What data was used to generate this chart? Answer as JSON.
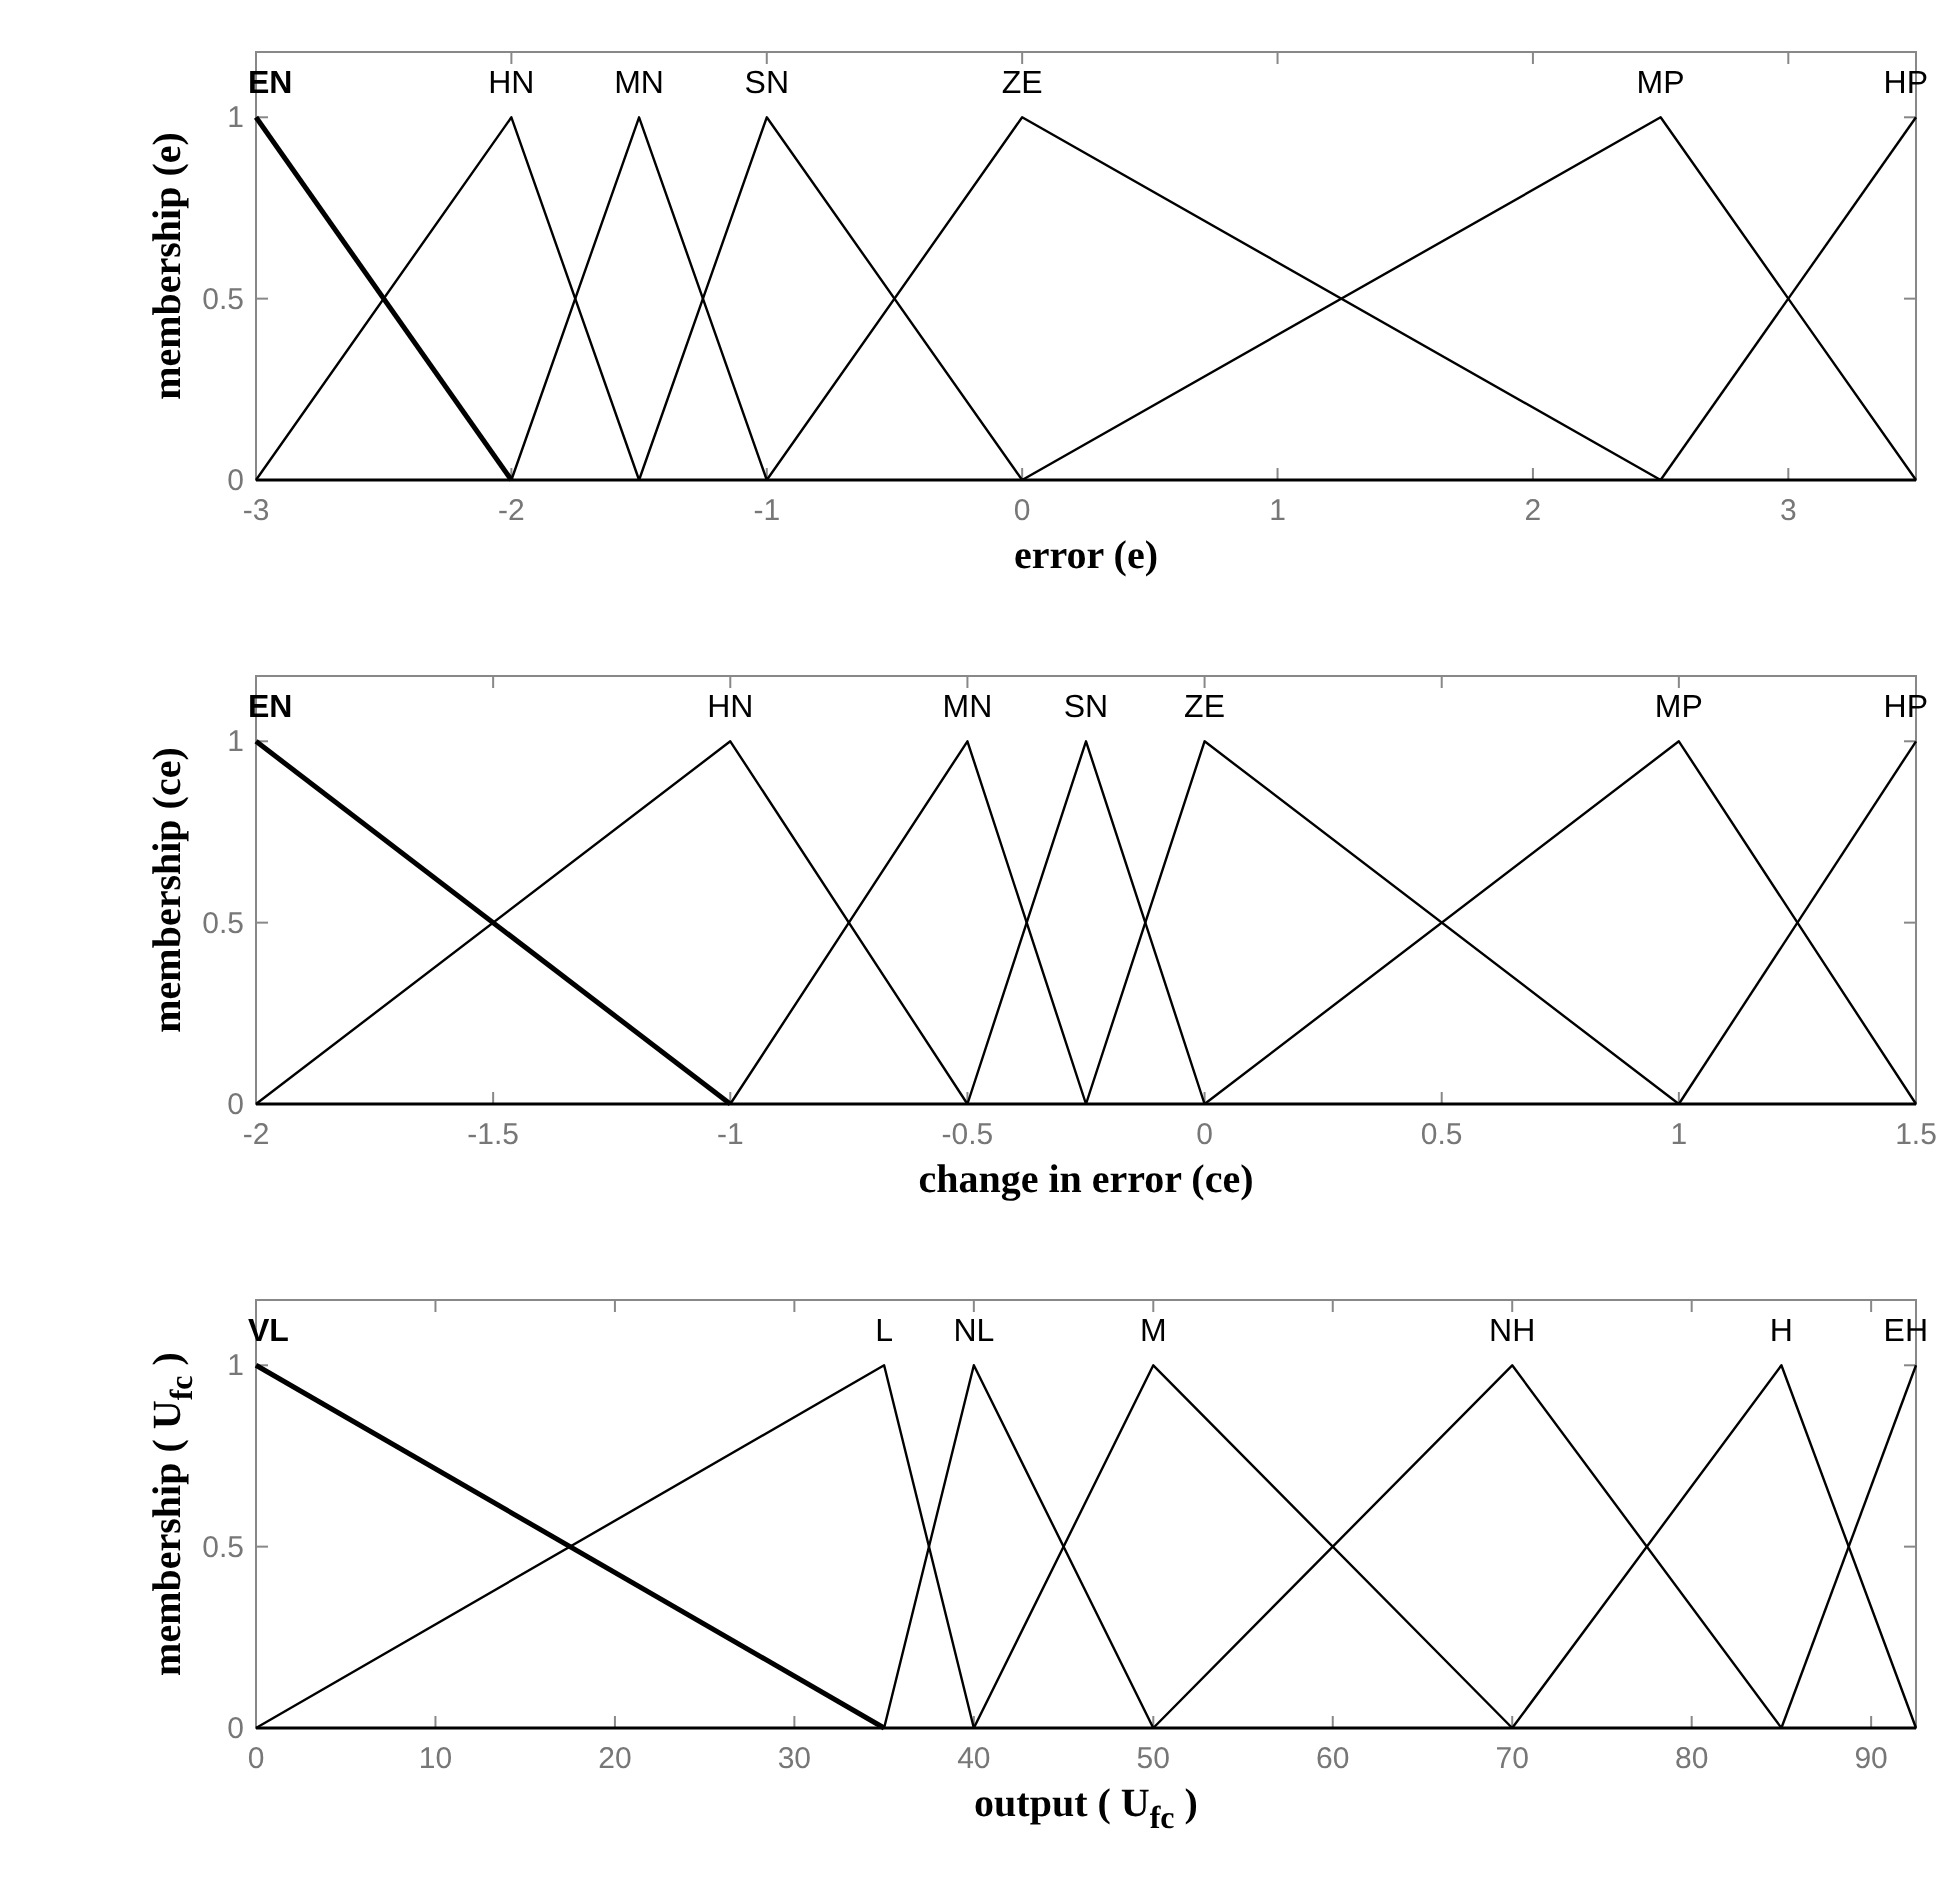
{
  "chart_data": [
    {
      "type": "line",
      "xlabel": "error (e)",
      "ylabel": "membership (e)",
      "xlim": [
        -3,
        3.5
      ],
      "xticks": [
        -3,
        -2,
        -1,
        0,
        1,
        2,
        3
      ],
      "ylim": [
        0,
        1.18
      ],
      "yticks": [
        0,
        0.5,
        1
      ],
      "grid": false,
      "marker": "none",
      "line_style": "solid",
      "series": [
        {
          "name": "EN",
          "color": "#000000",
          "x": [
            -3,
            -2
          ],
          "values": [
            1,
            0
          ]
        },
        {
          "name": "HN",
          "color": "#000000",
          "x": [
            -3,
            -2,
            -1.5
          ],
          "values": [
            0,
            1,
            0
          ]
        },
        {
          "name": "MN",
          "color": "#000000",
          "x": [
            -2,
            -1.5,
            -1
          ],
          "values": [
            0,
            1,
            0
          ]
        },
        {
          "name": "SN",
          "color": "#000000",
          "x": [
            -1.5,
            -1,
            0
          ],
          "values": [
            0,
            1,
            0
          ]
        },
        {
          "name": "ZE",
          "color": "#000000",
          "x": [
            -1,
            0,
            2.5
          ],
          "values": [
            0,
            1,
            0
          ]
        },
        {
          "name": "MP",
          "color": "#000000",
          "x": [
            0,
            2.5,
            3.5
          ],
          "values": [
            0,
            1,
            0
          ]
        },
        {
          "name": "HP",
          "color": "#000000",
          "x": [
            2.5,
            3.5
          ],
          "values": [
            0,
            1
          ]
        }
      ]
    },
    {
      "type": "line",
      "xlabel": "change in error (ce)",
      "ylabel": "membership (ce)",
      "xlim": [
        -2,
        1.5
      ],
      "xticks": [
        -2,
        -1.5,
        -1,
        -0.5,
        0,
        0.5,
        1,
        1.5
      ],
      "ylim": [
        0,
        1.18
      ],
      "yticks": [
        0,
        0.5,
        1
      ],
      "grid": false,
      "marker": "none",
      "line_style": "solid",
      "series": [
        {
          "name": "EN",
          "color": "#000000",
          "x": [
            -2,
            -1
          ],
          "values": [
            1,
            0
          ]
        },
        {
          "name": "HN",
          "color": "#000000",
          "x": [
            -2,
            -1,
            -0.5
          ],
          "values": [
            0,
            1,
            0
          ]
        },
        {
          "name": "MN",
          "color": "#000000",
          "x": [
            -1,
            -0.5,
            -0.25
          ],
          "values": [
            0,
            1,
            0
          ]
        },
        {
          "name": "SN",
          "color": "#000000",
          "x": [
            -0.5,
            -0.25,
            0
          ],
          "values": [
            0,
            1,
            0
          ]
        },
        {
          "name": "ZE",
          "color": "#000000",
          "x": [
            -0.25,
            0,
            1
          ],
          "values": [
            0,
            1,
            0
          ]
        },
        {
          "name": "MP",
          "color": "#000000",
          "x": [
            0,
            1,
            1.5
          ],
          "values": [
            0,
            1,
            0
          ]
        },
        {
          "name": "HP",
          "color": "#000000",
          "x": [
            1,
            1.5
          ],
          "values": [
            0,
            1
          ]
        }
      ]
    },
    {
      "type": "line",
      "xlabel": "output ( U$_{fc}$)",
      "ylabel": "membership ( U$_{fc}$)",
      "xlim": [
        0,
        92.5
      ],
      "xticks": [
        0,
        10,
        20,
        30,
        40,
        50,
        60,
        70,
        80,
        90
      ],
      "ylim": [
        0,
        1.18
      ],
      "yticks": [
        0,
        0.5,
        1
      ],
      "grid": false,
      "marker": "none",
      "line_style": "solid",
      "series": [
        {
          "name": "VL",
          "color": "#000000",
          "x": [
            0,
            35
          ],
          "values": [
            1,
            0
          ]
        },
        {
          "name": "L",
          "color": "#000000",
          "x": [
            0,
            35,
            40
          ],
          "values": [
            0,
            1,
            0
          ]
        },
        {
          "name": "NL",
          "color": "#000000",
          "x": [
            35,
            40,
            50
          ],
          "values": [
            0,
            1,
            0
          ]
        },
        {
          "name": "M",
          "color": "#000000",
          "x": [
            40,
            50,
            70
          ],
          "values": [
            0,
            1,
            0
          ]
        },
        {
          "name": "NH",
          "color": "#000000",
          "x": [
            50,
            70,
            85
          ],
          "values": [
            0,
            1,
            0
          ]
        },
        {
          "name": "H",
          "color": "#000000",
          "x": [
            70,
            85,
            92.5
          ],
          "values": [
            0,
            1,
            0
          ]
        },
        {
          "name": "EH",
          "color": "#000000",
          "x": [
            85,
            92.5
          ],
          "values": [
            0,
            1
          ]
        }
      ]
    }
  ]
}
